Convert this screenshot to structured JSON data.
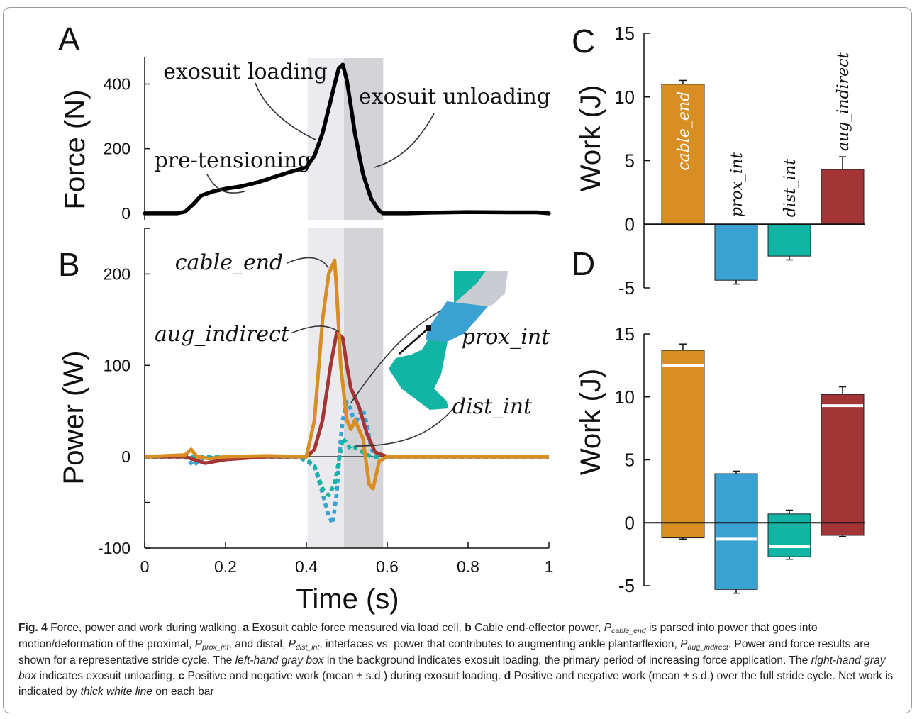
{
  "colors": {
    "cable_end": "#d98e23",
    "aug_indirect": "#a33536",
    "prox_int": "#3aa2d3",
    "dist_int": "#12b5a3",
    "force": "#000000",
    "loading_box": "#ebebef",
    "unloading_box": "#d3d3d8",
    "net_line": "#ffffff"
  },
  "icons": {
    "leg": "leg-illustration"
  },
  "chart_data": [
    {
      "panel": "A",
      "type": "line",
      "ylabel": "Force (N)",
      "xlim": [
        0,
        1
      ],
      "ylim": [
        -20,
        480
      ],
      "yticks": [
        "400",
        "200",
        "0"
      ],
      "ytick_values": [
        400,
        200,
        0
      ],
      "shaded": [
        {
          "from": 0.403,
          "to": 0.493
        },
        {
          "from": 0.493,
          "to": 0.59
        }
      ],
      "annotations": [
        "exosuit loading",
        "exosuit unloading",
        "pre-tensioning"
      ],
      "series": [
        {
          "key": "force",
          "x": [
            0,
            0.08,
            0.1,
            0.12,
            0.14,
            0.17,
            0.2,
            0.24,
            0.28,
            0.32,
            0.36,
            0.4,
            0.42,
            0.44,
            0.46,
            0.47,
            0.48,
            0.49,
            0.5,
            0.51,
            0.52,
            0.54,
            0.56,
            0.58,
            0.59,
            0.6,
            0.65,
            0.7,
            0.8,
            0.9,
            0.97,
            1.0
          ],
          "values": [
            0,
            0,
            5,
            28,
            55,
            68,
            76,
            84,
            96,
            112,
            128,
            142,
            178,
            248,
            348,
            400,
            448,
            460,
            412,
            332,
            248,
            122,
            46,
            8,
            0,
            0,
            0,
            2,
            4,
            3,
            3,
            0
          ]
        }
      ]
    },
    {
      "panel": "B",
      "type": "line",
      "xlabel": "Time (s)",
      "ylabel": "Power (W)",
      "xlim": [
        0,
        1
      ],
      "ylim": [
        -100,
        250
      ],
      "xticks": [
        "0",
        "0.2",
        "0.4",
        "0.6",
        "0.8",
        "1"
      ],
      "xtick_values": [
        0,
        0.2,
        0.4,
        0.6,
        0.8,
        1
      ],
      "yticks": [
        "200",
        "100",
        "0",
        "-100"
      ],
      "ytick_values": [
        200,
        100,
        0,
        -100
      ],
      "shaded": [
        {
          "from": 0.403,
          "to": 0.493
        },
        {
          "from": 0.493,
          "to": 0.59
        }
      ],
      "annotations": [
        "cable_end",
        "aug_indirect",
        "prox_int",
        "dist_int"
      ],
      "series": [
        {
          "key": "cable_end",
          "style": "solid",
          "x": [
            0,
            0.1,
            0.115,
            0.13,
            0.16,
            0.2,
            0.3,
            0.4,
            0.42,
            0.44,
            0.455,
            0.47,
            0.475,
            0.485,
            0.5,
            0.51,
            0.52,
            0.54,
            0.555,
            0.565,
            0.58,
            0.6,
            0.7,
            0.8,
            1.0
          ],
          "values": [
            0,
            2,
            8,
            0,
            -2,
            0,
            1,
            0,
            40,
            150,
            200,
            215,
            180,
            100,
            40,
            30,
            40,
            20,
            -30,
            -35,
            -5,
            0,
            0,
            0,
            0
          ]
        },
        {
          "key": "aug_indirect",
          "style": "solid",
          "x": [
            0,
            0.1,
            0.15,
            0.2,
            0.3,
            0.4,
            0.42,
            0.44,
            0.46,
            0.475,
            0.49,
            0.5,
            0.51,
            0.53,
            0.55,
            0.57,
            0.6,
            0.7,
            0.8,
            1.0
          ],
          "values": [
            0,
            0,
            -7,
            -3,
            0,
            0,
            8,
            40,
            100,
            136,
            130,
            100,
            75,
            55,
            25,
            5,
            0,
            0,
            0,
            0
          ]
        },
        {
          "key": "prox_int",
          "style": "dotted",
          "x": [
            0,
            0.1,
            0.11,
            0.12,
            0.14,
            0.2,
            0.3,
            0.38,
            0.4,
            0.42,
            0.44,
            0.455,
            0.465,
            0.475,
            0.485,
            0.49,
            0.5,
            0.51,
            0.52,
            0.53,
            0.54,
            0.55,
            0.56,
            0.57,
            0.6,
            0.7,
            0.8,
            1.0
          ],
          "values": [
            0,
            0,
            -4,
            -10,
            -2,
            0,
            0,
            0,
            -5,
            -10,
            -40,
            -65,
            -73,
            -40,
            20,
            40,
            60,
            52,
            35,
            45,
            52,
            35,
            10,
            0,
            0,
            0,
            0,
            0
          ]
        },
        {
          "key": "dist_int",
          "style": "dotted",
          "x": [
            0,
            0.3,
            0.38,
            0.4,
            0.42,
            0.44,
            0.455,
            0.47,
            0.48,
            0.49,
            0.5,
            0.51,
            0.52,
            0.54,
            0.56,
            0.6,
            0.8,
            1.0
          ],
          "values": [
            0,
            0,
            0,
            -3,
            -10,
            -35,
            -42,
            -30,
            -5,
            20,
            15,
            8,
            10,
            5,
            0,
            0,
            0,
            0
          ]
        }
      ]
    },
    {
      "panel": "C",
      "type": "bar",
      "ylabel": "Work (J)",
      "ylim": [
        -5,
        15
      ],
      "yticks": [
        "15",
        "10",
        "5",
        "0",
        "-5"
      ],
      "ytick_values": [
        15,
        10,
        5,
        0,
        -5
      ],
      "categories": [
        "cable_end",
        "prox_int",
        "dist_int",
        "aug_indirect"
      ],
      "values": [
        11.0,
        -4.4,
        -2.5,
        4.3
      ],
      "error": [
        0.3,
        0.3,
        0.3,
        1.0
      ]
    },
    {
      "panel": "D",
      "type": "bar",
      "ylabel": "Work (J)",
      "ylim": [
        -5,
        15
      ],
      "yticks": [
        "15",
        "10",
        "5",
        "0",
        "-5"
      ],
      "ytick_values": [
        15,
        10,
        5,
        0,
        -5
      ],
      "categories": [
        "cable_end",
        "prox_int",
        "dist_int",
        "aug_indirect"
      ],
      "positive": [
        13.7,
        3.9,
        0.7,
        10.2
      ],
      "positive_error": [
        0.5,
        0.2,
        0.3,
        0.6
      ],
      "negative": [
        -1.2,
        -5.3,
        -2.7,
        -1.0
      ],
      "negative_error": [
        0.1,
        0.3,
        0.2,
        0.1
      ],
      "net": [
        12.5,
        -1.3,
        -1.9,
        9.3
      ]
    }
  ],
  "panels": {
    "a": "A",
    "b": "B",
    "c": "C",
    "d": "D"
  },
  "caption": {
    "fig_label": "Fig. 4",
    "intro": " Force, power and work during walking. ",
    "a_label": "a",
    "a_text": " Exosuit cable force measured via load cell. ",
    "b_label": "b",
    "b_text1": " Cable end-effector power, ",
    "p": "P",
    "cable_end": "cable_end",
    "b_text2": " is parsed into power that goes into motion/deformation of the proximal, ",
    "prox_int": "prox_int",
    "b_text3": ", and distal, ",
    "dist_int": "dist_int",
    "b_text4": ", interfaces vs. power that contributes to augmenting ankle plantarflexion, ",
    "aug_indirect": "aug_indirect",
    "b_text5": ". Power and force results are shown for a representative stride cycle. The ",
    "left_box": "left-hand gray box",
    "b_text6": " in the background indicates exosuit loading, the primary period of increasing force application. The ",
    "right_box": "right-hand gray box",
    "b_text7": " indicates exosuit unloading. ",
    "c_label": "c",
    "c_text": " Positive and negative work (mean ± s.d.) during exosuit loading. ",
    "d_label": "d",
    "d_text": " Positive and negative work (mean ± s.d.) over the full stride cycle. Net work is indicated by ",
    "thick_line": "thick white line",
    "d_end": " on each bar"
  }
}
